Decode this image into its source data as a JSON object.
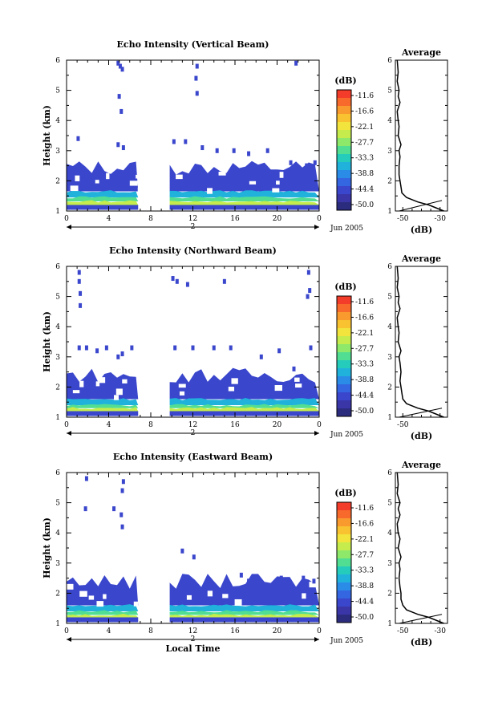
{
  "shared": {
    "month_label": "Jun 2005",
    "day_label": "2",
    "x_label": "Local Time",
    "y_label": "Height (km)",
    "avg_title": "Average",
    "avg_xlabel": "(dB)",
    "colorbar_unit": "(dB)"
  },
  "chart_data": [
    {
      "type": "heatmap",
      "title": "Echo Intensity (Vertical Beam)",
      "xlabel": "",
      "ylabel": "Height (km)",
      "xlim": [
        0,
        24
      ],
      "ylim": [
        1,
        6
      ],
      "x_ticks": [
        "0",
        "4",
        "8",
        "12",
        "16",
        "20",
        "0"
      ],
      "y_ticks": [
        "1",
        "2",
        "3",
        "4",
        "5",
        "6"
      ],
      "data_gap_hours": [
        6.8,
        9.8
      ],
      "colorbar": {
        "ticks": [
          "-11.6",
          "-16.6",
          "-22.1",
          "-27.7",
          "-33.3",
          "-38.8",
          "-44.4",
          "-50.0"
        ],
        "colors": [
          "#f43c2a",
          "#f76a2c",
          "#f99a2e",
          "#f8c230",
          "#f2e43c",
          "#c5ec4c",
          "#8ee86a",
          "#52de92",
          "#25ccbc",
          "#21b2dc",
          "#2b8ce8",
          "#3366e0",
          "#3a46cc",
          "#3a36a8",
          "#2c2c7e"
        ]
      },
      "layers": [
        {
          "top_km": 2.35,
          "intensity_db": -45
        },
        {
          "top_km": 1.65,
          "intensity_db": -38
        },
        {
          "top_km": 1.45,
          "intensity_db": -30
        },
        {
          "top_km": 1.32,
          "intensity_db": -24
        }
      ],
      "scatter_echoes": [
        [
          4.9,
          5.9
        ],
        [
          5.1,
          5.8
        ],
        [
          5.3,
          5.7
        ],
        [
          5.0,
          4.8
        ],
        [
          5.2,
          4.3
        ],
        [
          1.1,
          3.4
        ],
        [
          4.9,
          3.2
        ],
        [
          5.4,
          3.1
        ],
        [
          12.4,
          5.8
        ],
        [
          12.3,
          5.4
        ],
        [
          12.4,
          4.9
        ],
        [
          21.8,
          5.9
        ],
        [
          10.2,
          3.3
        ],
        [
          11.3,
          3.3
        ],
        [
          12.9,
          3.1
        ],
        [
          14.3,
          3.0
        ],
        [
          15.9,
          3.0
        ],
        [
          17.3,
          2.9
        ],
        [
          19.1,
          3.0
        ],
        [
          21.3,
          2.6
        ],
        [
          22.8,
          2.5
        ],
        [
          23.6,
          2.6
        ]
      ],
      "average": {
        "title": "Average",
        "xlabel": "(dB)",
        "xlim": [
          -54,
          -26
        ],
        "ylim": [
          1,
          6
        ],
        "x_ticks": [
          "-50",
          "-30"
        ],
        "heights_km": [
          1.0,
          1.2,
          1.3,
          1.45,
          1.6,
          1.8,
          2.0,
          2.2,
          2.5,
          2.8,
          3.0,
          3.2,
          3.5,
          3.8,
          4.0,
          4.3,
          4.6,
          4.8,
          5.0,
          5.3,
          5.6,
          6.0
        ],
        "profile_db": [
          -28,
          -36,
          -42,
          -48,
          -50.5,
          -51,
          -51.5,
          -52,
          -52,
          -51.5,
          -52,
          -51,
          -52.5,
          -52,
          -52.5,
          -53,
          -51.5,
          -52.5,
          -52,
          -53,
          -52.5,
          -53
        ],
        "noise_db": [
          -52,
          -29
        ],
        "noise_km": [
          1.0,
          1.35
        ]
      }
    },
    {
      "type": "heatmap",
      "title": "Echo Intensity (Northward Beam)",
      "xlabel": "",
      "ylabel": "Height (km)",
      "xlim": [
        0,
        24
      ],
      "ylim": [
        1,
        6
      ],
      "x_ticks": [
        "0",
        "4",
        "8",
        "12",
        "16",
        "20",
        "0"
      ],
      "y_ticks": [
        "1",
        "2",
        "3",
        "4",
        "5",
        "6"
      ],
      "data_gap_hours": [
        6.8,
        9.8
      ],
      "colorbar": {
        "ticks": [
          "-11.6",
          "-16.6",
          "-22.1",
          "-27.7",
          "-33.3",
          "-38.8",
          "-44.4",
          "-50.0"
        ],
        "colors": [
          "#f43c2a",
          "#f76a2c",
          "#f99a2e",
          "#f8c230",
          "#f2e43c",
          "#c5ec4c",
          "#8ee86a",
          "#52de92",
          "#25ccbc",
          "#21b2dc",
          "#2b8ce8",
          "#3366e0",
          "#3a46cc",
          "#3a36a8",
          "#2c2c7e"
        ]
      },
      "layers": [
        {
          "top_km": 2.3,
          "intensity_db": -45
        },
        {
          "top_km": 1.6,
          "intensity_db": -38
        },
        {
          "top_km": 1.4,
          "intensity_db": -30
        },
        {
          "top_km": 1.3,
          "intensity_db": -24
        }
      ],
      "scatter_echoes": [
        [
          1.2,
          5.8
        ],
        [
          1.2,
          5.5
        ],
        [
          1.3,
          5.1
        ],
        [
          1.3,
          4.7
        ],
        [
          10.1,
          5.6
        ],
        [
          10.5,
          5.5
        ],
        [
          11.5,
          5.4
        ],
        [
          15.0,
          5.5
        ],
        [
          23.0,
          5.8
        ],
        [
          23.1,
          5.2
        ],
        [
          22.9,
          5.0
        ],
        [
          1.2,
          3.3
        ],
        [
          1.9,
          3.3
        ],
        [
          2.9,
          3.2
        ],
        [
          3.8,
          3.3
        ],
        [
          5.3,
          3.1
        ],
        [
          4.9,
          3.0
        ],
        [
          6.2,
          3.3
        ],
        [
          10.3,
          3.3
        ],
        [
          12.0,
          3.3
        ],
        [
          14.0,
          3.3
        ],
        [
          15.6,
          3.3
        ],
        [
          18.5,
          3.0
        ],
        [
          20.2,
          3.2
        ],
        [
          21.6,
          2.6
        ],
        [
          23.2,
          3.3
        ]
      ],
      "average": {
        "title": "Average",
        "xlabel": "(dB)",
        "xlim": [
          -54,
          -26
        ],
        "ylim": [
          1,
          6
        ],
        "x_ticks": [
          "-50"
        ],
        "heights_km": [
          1.0,
          1.2,
          1.3,
          1.45,
          1.6,
          1.8,
          2.0,
          2.2,
          2.5,
          2.8,
          3.0,
          3.2,
          3.5,
          3.8,
          4.0,
          4.3,
          4.6,
          4.8,
          5.0,
          5.3,
          5.6,
          6.0
        ],
        "profile_db": [
          -28,
          -36,
          -42,
          -48,
          -50,
          -50.5,
          -51,
          -51.5,
          -51,
          -51.5,
          -52,
          -51,
          -52.5,
          -52,
          -52.5,
          -53,
          -51.5,
          -52.5,
          -52,
          -53,
          -52.5,
          -53
        ],
        "noise_db": [
          -52,
          -29
        ],
        "noise_km": [
          1.0,
          1.3
        ]
      }
    },
    {
      "type": "heatmap",
      "title": "Echo Intensity (Eastward Beam)",
      "xlabel": "Local Time",
      "ylabel": "Height (km)",
      "xlim": [
        0,
        24
      ],
      "ylim": [
        1,
        6
      ],
      "x_ticks": [
        "0",
        "4",
        "8",
        "12",
        "16",
        "20",
        "0"
      ],
      "y_ticks": [
        "1",
        "2",
        "3",
        "4",
        "5",
        "6"
      ],
      "data_gap_hours": [
        6.8,
        9.8
      ],
      "colorbar": {
        "ticks": [
          "-11.6",
          "-16.6",
          "-22.1",
          "-27.7",
          "-33.3",
          "-38.8",
          "-44.4",
          "-50.0"
        ],
        "colors": [
          "#f43c2a",
          "#f76a2c",
          "#f99a2e",
          "#f8c230",
          "#f2e43c",
          "#c5ec4c",
          "#8ee86a",
          "#52de92",
          "#25ccbc",
          "#21b2dc",
          "#2b8ce8",
          "#3366e0",
          "#3a46cc",
          "#3a36a8",
          "#2c2c7e"
        ]
      },
      "layers": [
        {
          "top_km": 2.3,
          "intensity_db": -45
        },
        {
          "top_km": 1.6,
          "intensity_db": -38
        },
        {
          "top_km": 1.4,
          "intensity_db": -30
        },
        {
          "top_km": 1.28,
          "intensity_db": -24
        }
      ],
      "scatter_echoes": [
        [
          1.9,
          5.8
        ],
        [
          5.4,
          5.7
        ],
        [
          5.3,
          5.4
        ],
        [
          1.8,
          4.8
        ],
        [
          4.5,
          4.8
        ],
        [
          5.2,
          4.6
        ],
        [
          5.3,
          4.2
        ],
        [
          11.0,
          3.4
        ],
        [
          12.1,
          3.2
        ],
        [
          16.6,
          2.6
        ],
        [
          17.3,
          2.4
        ],
        [
          20.4,
          2.5
        ],
        [
          22.5,
          2.5
        ],
        [
          23.5,
          2.4
        ]
      ],
      "average": {
        "title": "Average",
        "xlabel": "(dB)",
        "xlim": [
          -54,
          -26
        ],
        "ylim": [
          1,
          6
        ],
        "x_ticks": [
          "-50",
          "-30"
        ],
        "heights_km": [
          1.0,
          1.2,
          1.3,
          1.45,
          1.6,
          1.8,
          2.0,
          2.2,
          2.5,
          2.8,
          3.0,
          3.2,
          3.5,
          3.8,
          4.0,
          4.3,
          4.6,
          4.8,
          5.0,
          5.3,
          5.6,
          6.0
        ],
        "profile_db": [
          -28,
          -36,
          -42,
          -48,
          -50,
          -51,
          -51,
          -51.5,
          -52,
          -51.5,
          -52,
          -51,
          -52.5,
          -51.5,
          -52.5,
          -53,
          -51.5,
          -52.5,
          -51.5,
          -53,
          -52.5,
          -53
        ],
        "noise_db": [
          -52,
          -29
        ],
        "noise_km": [
          1.0,
          1.3
        ]
      }
    }
  ]
}
